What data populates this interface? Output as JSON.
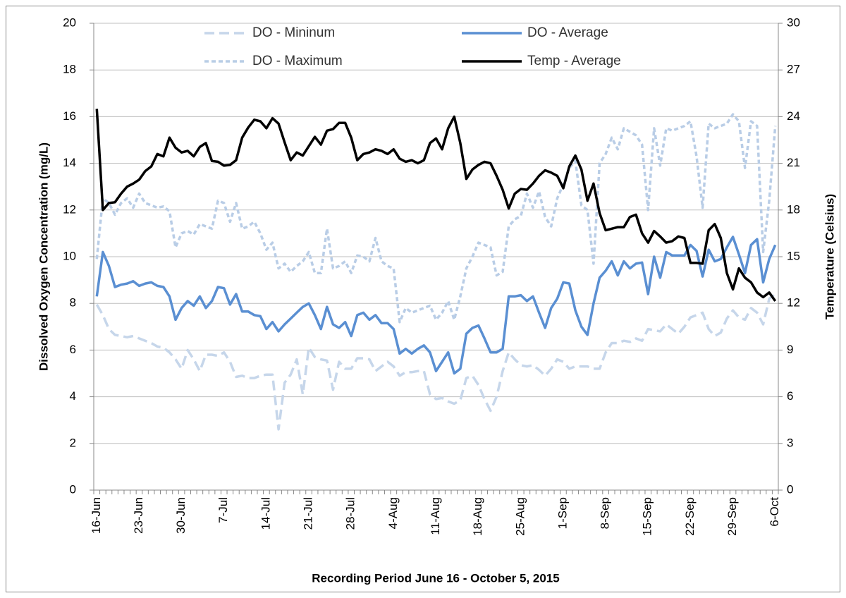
{
  "chart_data": {
    "type": "line",
    "xlabel": "Recording Period June 16 - October 5, 2015",
    "ylabel": "Dissolved Oxygen Concentration (mg/L)",
    "y2label": "Temperature (Celsius)",
    "categories": [
      "16-Jun",
      null,
      null,
      null,
      null,
      null,
      null,
      "23-Jun",
      null,
      null,
      null,
      null,
      null,
      null,
      "30-Jun",
      null,
      null,
      null,
      null,
      null,
      null,
      "7-Jul",
      null,
      null,
      null,
      null,
      null,
      null,
      "14-Jul",
      null,
      null,
      null,
      null,
      null,
      null,
      "21-Jul",
      null,
      null,
      null,
      null,
      null,
      null,
      "28-Jul",
      null,
      null,
      null,
      null,
      null,
      null,
      "4-Aug",
      null,
      null,
      null,
      null,
      null,
      null,
      "11-Aug",
      null,
      null,
      null,
      null,
      null,
      null,
      "18-Aug",
      null,
      null,
      null,
      null,
      null,
      null,
      "25-Aug",
      null,
      null,
      null,
      null,
      null,
      null,
      "1-Sep",
      null,
      null,
      null,
      null,
      null,
      null,
      "8-Sep",
      null,
      null,
      null,
      null,
      null,
      null,
      "15-Sep",
      null,
      null,
      null,
      null,
      null,
      null,
      "22-Sep",
      null,
      null,
      null,
      null,
      null,
      null,
      "29-Sep",
      null,
      null,
      null,
      null,
      null,
      null,
      "6-Oct"
    ],
    "ylim": [
      0,
      20
    ],
    "yticks": [
      0,
      2,
      4,
      6,
      8,
      10,
      12,
      14,
      16,
      18,
      20
    ],
    "y2lim": [
      0,
      30
    ],
    "y2ticks": [
      0,
      3,
      6,
      9,
      12,
      15,
      18,
      21,
      24,
      27,
      30
    ],
    "grid": true,
    "legend": "top",
    "series": [
      {
        "name": "DO - Mininum",
        "color": "#c6d6ea",
        "style": "long-dash",
        "values": [
          7.95,
          7.5,
          6.9,
          6.65,
          6.6,
          6.55,
          6.6,
          6.5,
          6.4,
          6.3,
          6.15,
          6.1,
          5.9,
          5.6,
          5.2,
          6.0,
          5.6,
          5.1,
          5.8,
          5.8,
          5.75,
          5.9,
          5.5,
          4.85,
          4.9,
          4.8,
          4.8,
          4.9,
          4.95,
          4.95,
          2.6,
          4.6,
          4.95,
          5.6,
          4.1,
          6.1,
          5.7,
          5.6,
          5.55,
          4.3,
          5.5,
          5.2,
          5.2,
          5.65,
          5.65,
          5.6,
          5.1,
          5.3,
          5.5,
          5.3,
          4.9,
          5.05,
          5.05,
          5.1,
          5.1,
          4.1,
          3.9,
          3.95,
          3.8,
          3.7,
          3.85,
          4.8,
          4.9,
          4.5,
          3.9,
          3.4,
          4.0,
          5.1,
          5.9,
          5.6,
          5.35,
          5.3,
          5.35,
          5.15,
          4.9,
          5.2,
          5.6,
          5.5,
          5.2,
          5.3,
          5.3,
          5.3,
          5.2,
          5.2,
          5.9,
          6.3,
          6.3,
          6.4,
          6.35,
          6.5,
          6.4,
          6.9,
          6.85,
          6.8,
          7.1,
          6.9,
          6.7,
          7.0,
          7.4,
          7.5,
          7.6,
          6.9,
          6.6,
          6.75,
          7.35,
          7.7,
          7.4,
          7.3,
          7.8,
          7.6,
          7.1,
          8.2,
          8.4
        ]
      },
      {
        "name": "DO - Average",
        "color": "#5a8fd2",
        "style": "solid",
        "values": [
          8.3,
          10.2,
          9.6,
          8.7,
          8.8,
          8.85,
          8.95,
          8.75,
          8.85,
          8.9,
          8.75,
          8.7,
          8.3,
          7.3,
          7.8,
          8.1,
          7.9,
          8.3,
          7.8,
          8.1,
          8.7,
          8.65,
          7.95,
          8.4,
          7.65,
          7.65,
          7.5,
          7.45,
          6.9,
          7.2,
          6.8,
          7.1,
          7.35,
          7.6,
          7.85,
          8.0,
          7.5,
          6.9,
          7.85,
          7.1,
          6.95,
          7.2,
          6.6,
          7.5,
          7.6,
          7.3,
          7.5,
          7.15,
          7.15,
          6.9,
          5.85,
          6.05,
          5.85,
          6.05,
          6.2,
          5.9,
          5.1,
          5.5,
          5.9,
          5.0,
          5.2,
          6.7,
          6.95,
          7.05,
          6.5,
          5.9,
          5.9,
          6.05,
          8.3,
          8.3,
          8.35,
          8.1,
          8.3,
          7.6,
          6.95,
          7.8,
          8.2,
          8.9,
          8.85,
          7.7,
          7.0,
          6.65,
          8.0,
          9.1,
          9.4,
          9.8,
          9.2,
          9.8,
          9.5,
          9.7,
          9.75,
          8.4,
          10.0,
          9.1,
          10.2,
          10.05,
          10.05,
          10.05,
          10.5,
          10.25,
          9.15,
          10.3,
          9.8,
          9.9,
          10.4,
          10.85,
          10.1,
          9.3,
          10.5,
          10.75,
          8.9,
          9.9,
          10.5
        ]
      },
      {
        "name": "DO - Maximum",
        "color": "#b9cde6",
        "style": "short-dash",
        "values": [
          9.9,
          12.5,
          12.3,
          11.8,
          12.3,
          12.5,
          12.1,
          12.7,
          12.3,
          12.2,
          12.1,
          12.15,
          11.95,
          10.4,
          11.0,
          11.1,
          10.95,
          11.4,
          11.3,
          11.2,
          12.4,
          12.3,
          11.5,
          12.3,
          11.2,
          11.3,
          11.5,
          11.0,
          10.3,
          10.6,
          9.5,
          9.7,
          9.35,
          9.6,
          9.8,
          10.2,
          9.3,
          9.3,
          11.2,
          9.5,
          9.6,
          9.8,
          9.3,
          10.05,
          10.0,
          9.8,
          10.8,
          9.8,
          9.6,
          9.5,
          7.2,
          7.8,
          7.6,
          7.7,
          7.8,
          7.9,
          7.3,
          7.6,
          8.1,
          7.3,
          8.3,
          9.5,
          10.0,
          10.6,
          10.5,
          10.4,
          9.2,
          9.35,
          11.3,
          11.6,
          11.75,
          12.7,
          12.1,
          12.8,
          11.7,
          11.3,
          12.5,
          13.1,
          13.8,
          14.1,
          12.2,
          12.0,
          9.7,
          14.0,
          14.4,
          15.1,
          14.6,
          15.5,
          15.35,
          15.2,
          14.8,
          12.0,
          15.5,
          13.9,
          15.5,
          15.4,
          15.5,
          15.6,
          15.8,
          14.3,
          12.1,
          15.7,
          15.5,
          15.6,
          15.7,
          16.1,
          15.8,
          13.8,
          15.8,
          15.6,
          10.2,
          12.4,
          15.6
        ]
      },
      {
        "name": "Temp - Average",
        "color": "#000000",
        "style": "solid",
        "axis": "y2",
        "values": [
          24.5,
          18.0,
          18.45,
          18.5,
          19.05,
          19.5,
          19.7,
          19.95,
          20.5,
          20.8,
          21.6,
          21.45,
          22.65,
          22.0,
          21.7,
          21.8,
          21.45,
          22.05,
          22.3,
          21.15,
          21.1,
          20.85,
          20.9,
          21.2,
          22.65,
          23.3,
          23.8,
          23.7,
          23.25,
          23.9,
          23.55,
          22.35,
          21.2,
          21.7,
          21.5,
          22.1,
          22.7,
          22.2,
          23.1,
          23.2,
          23.6,
          23.6,
          22.65,
          21.2,
          21.6,
          21.7,
          21.9,
          21.8,
          21.6,
          21.9,
          21.3,
          21.1,
          21.2,
          21.0,
          21.2,
          22.3,
          22.6,
          21.9,
          23.25,
          24.0,
          22.3,
          20.0,
          20.6,
          20.9,
          21.1,
          21.0,
          20.2,
          19.3,
          18.1,
          19.05,
          19.35,
          19.3,
          19.7,
          20.2,
          20.55,
          20.4,
          20.2,
          19.4,
          20.8,
          21.5,
          20.6,
          18.6,
          19.7,
          17.8,
          16.7,
          16.8,
          16.9,
          16.9,
          17.55,
          17.7,
          16.5,
          15.9,
          16.65,
          16.3,
          15.9,
          16.0,
          16.3,
          16.2,
          14.6,
          14.6,
          14.55,
          16.7,
          17.1,
          16.2,
          13.95,
          12.9,
          14.25,
          13.65,
          13.35,
          12.7,
          12.4,
          12.7,
          12.15
        ]
      }
    ]
  }
}
